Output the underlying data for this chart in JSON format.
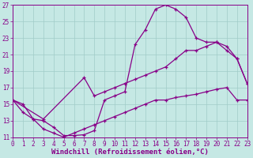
{
  "bg_color": "#c5e8e4",
  "line_color": "#880088",
  "grid_color": "#a0ccc8",
  "xlabel": "Windchill (Refroidissement éolien,°C)",
  "xlim": [
    0,
    23
  ],
  "ylim": [
    11,
    27
  ],
  "xticks": [
    0,
    1,
    2,
    3,
    4,
    5,
    6,
    7,
    8,
    9,
    10,
    11,
    12,
    13,
    14,
    15,
    16,
    17,
    18,
    19,
    20,
    21,
    22,
    23
  ],
  "yticks": [
    11,
    13,
    15,
    17,
    19,
    21,
    23,
    25,
    27
  ],
  "curve1_x": [
    0,
    1,
    2,
    3,
    4,
    5,
    6,
    7,
    8,
    9,
    10,
    11,
    12,
    13,
    14,
    15,
    16,
    17,
    18,
    19,
    20,
    21,
    22,
    23
  ],
  "curve1_y": [
    15.5,
    15.0,
    13.2,
    13.0,
    12.2,
    11.2,
    11.2,
    11.3,
    11.8,
    15.5,
    16.0,
    16.5,
    22.2,
    24.0,
    26.5,
    27.0,
    26.5,
    25.5,
    23.0,
    22.5,
    22.5,
    21.5,
    20.5,
    17.5
  ],
  "curve2_x": [
    0,
    3,
    7,
    8,
    9,
    10,
    11,
    12,
    13,
    14,
    15,
    16,
    17,
    18,
    19,
    20,
    21,
    22,
    23
  ],
  "curve2_y": [
    15.5,
    13.2,
    18.2,
    16.0,
    16.5,
    17.0,
    17.5,
    18.0,
    18.5,
    19.0,
    19.5,
    20.5,
    21.5,
    21.5,
    22.0,
    22.5,
    22.0,
    20.5,
    17.5
  ],
  "curve3_x": [
    0,
    1,
    2,
    3,
    4,
    5,
    6,
    7,
    8,
    9,
    10,
    11,
    12,
    13,
    14,
    15,
    16,
    17,
    18,
    19,
    20,
    21,
    22,
    23
  ],
  "curve3_y": [
    15.5,
    14.0,
    13.2,
    12.0,
    11.5,
    11.0,
    11.5,
    12.0,
    12.5,
    13.0,
    13.5,
    14.0,
    14.5,
    15.0,
    15.5,
    15.5,
    15.8,
    16.0,
    16.2,
    16.5,
    16.8,
    17.0,
    15.5,
    15.5
  ],
  "font_size_tick": 5.5,
  "font_size_label": 6.5
}
